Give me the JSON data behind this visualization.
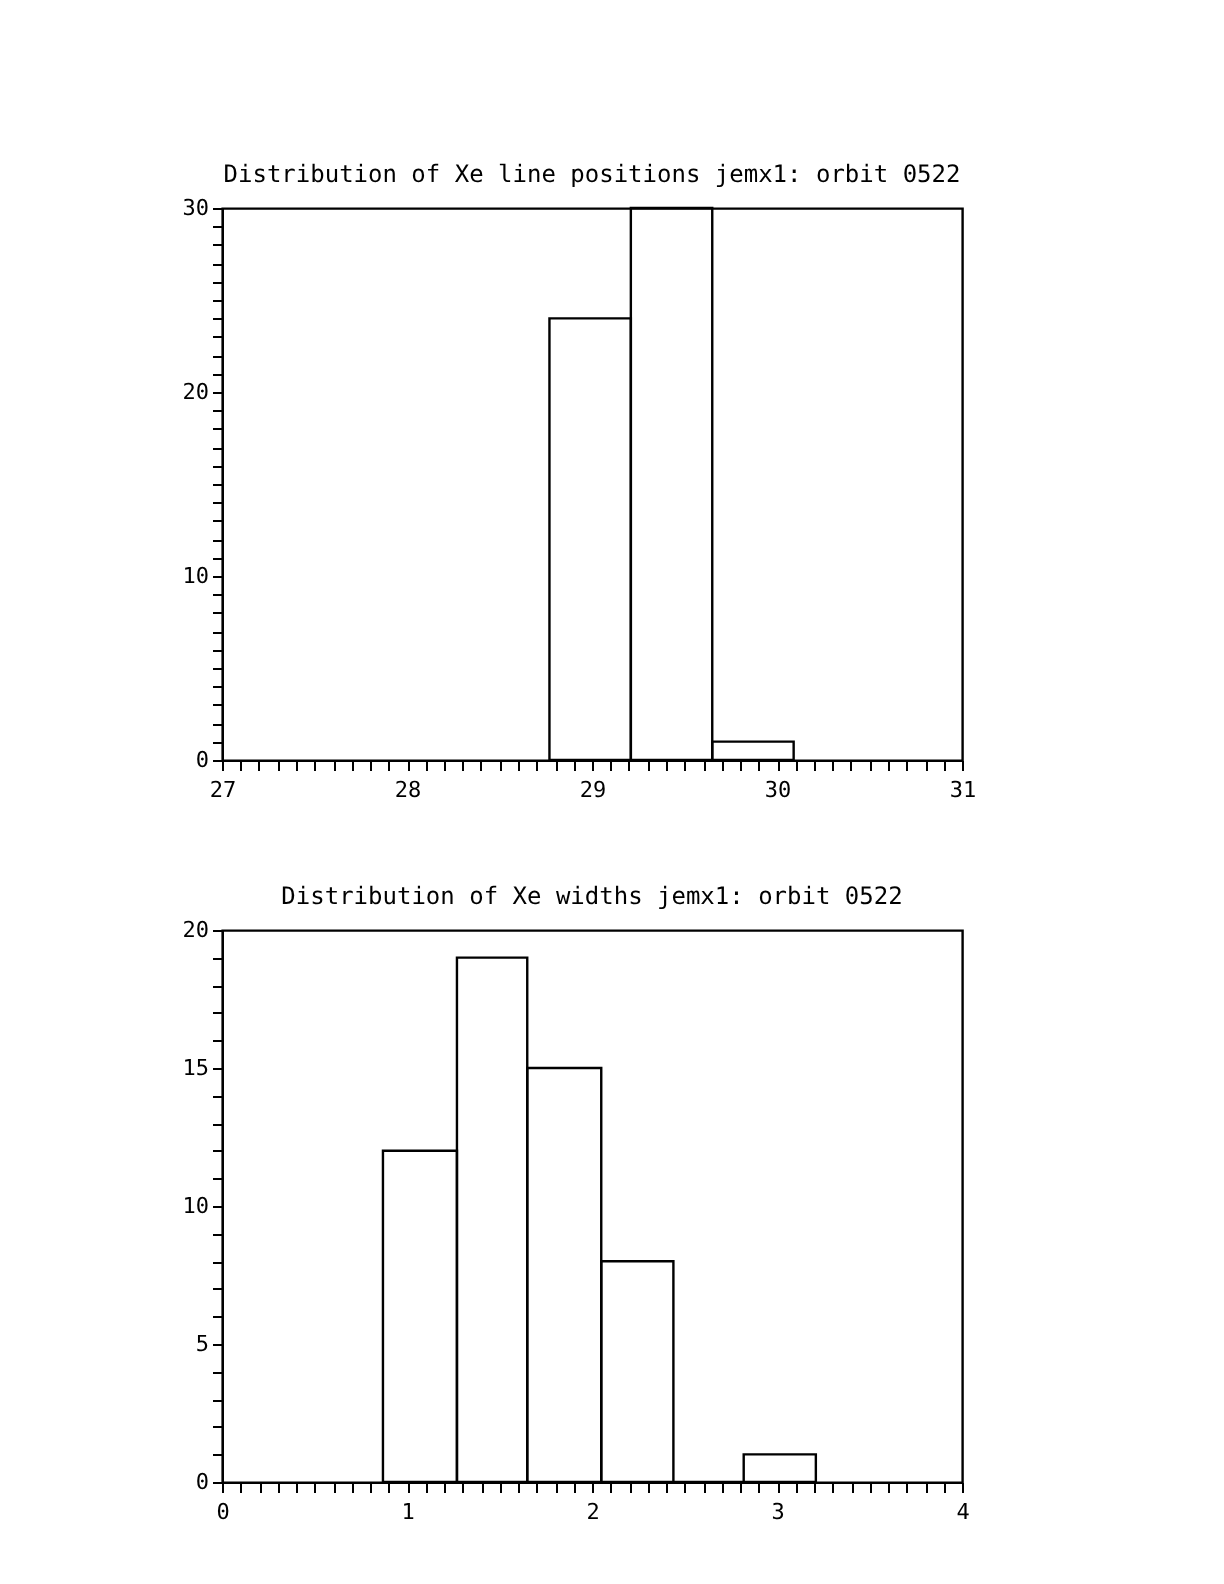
{
  "chart_data": [
    {
      "type": "histogram",
      "title": "Distribution of Xe line positions jemx1: orbit 0522",
      "bins": [
        28.77,
        29.21,
        29.65,
        30.09
      ],
      "values": [
        24,
        30,
        1
      ],
      "color": "#000000",
      "xlim": [
        27,
        31
      ],
      "ylim": [
        0,
        30
      ],
      "xticks": [
        27,
        {
          "value": 27.1,
          "label": null
        },
        {
          "value": 27.2,
          "label": null
        },
        {
          "value": 27.3,
          "label": null
        },
        {
          "value": 27.4,
          "label": null
        },
        {
          "value": 27.5,
          "label": null
        },
        {
          "value": 27.6,
          "label": null
        },
        {
          "value": 27.7,
          "label": null
        },
        {
          "value": 27.8,
          "label": null
        },
        {
          "value": 27.9,
          "label": null
        },
        28,
        {
          "value": 28.1,
          "label": null
        },
        {
          "value": 28.2,
          "label": null
        },
        {
          "value": 28.3,
          "label": null
        },
        {
          "value": 28.4,
          "label": null
        },
        {
          "value": 28.5,
          "label": null
        },
        {
          "value": 28.6,
          "label": null
        },
        {
          "value": 28.7,
          "label": null
        },
        {
          "value": 28.8,
          "label": null
        },
        {
          "value": 28.9,
          "label": null
        },
        29,
        {
          "value": 29.1,
          "label": null
        },
        {
          "value": 29.2,
          "label": null
        },
        {
          "value": 29.3,
          "label": null
        },
        {
          "value": 29.4,
          "label": null
        },
        {
          "value": 29.5,
          "label": null
        },
        {
          "value": 29.6,
          "label": null
        },
        {
          "value": 29.7,
          "label": null
        },
        {
          "value": 29.8,
          "label": null
        },
        {
          "value": 29.9,
          "label": null
        },
        30,
        {
          "value": 30.1,
          "label": null
        },
        {
          "value": 30.2,
          "label": null
        },
        {
          "value": 30.3,
          "label": null
        },
        {
          "value": 30.4,
          "label": null
        },
        {
          "value": 30.5,
          "label": null
        },
        {
          "value": 30.6,
          "label": null
        },
        {
          "value": 30.7,
          "label": null
        },
        {
          "value": 30.8,
          "label": null
        },
        {
          "value": 30.9,
          "label": null
        },
        31
      ],
      "yticks": [
        0,
        {
          "value": 1,
          "label": null
        },
        {
          "value": 2,
          "label": null
        },
        {
          "value": 3,
          "label": null
        },
        {
          "value": 4,
          "label": null
        },
        {
          "value": 5,
          "label": null
        },
        {
          "value": 6,
          "label": null
        },
        {
          "value": 7,
          "label": null
        },
        {
          "value": 8,
          "label": null
        },
        {
          "value": 9,
          "label": null
        },
        10,
        {
          "value": 11,
          "label": null
        },
        {
          "value": 12,
          "label": null
        },
        {
          "value": 13,
          "label": null
        },
        {
          "value": 14,
          "label": null
        },
        {
          "value": 15,
          "label": null
        },
        {
          "value": 16,
          "label": null
        },
        {
          "value": 17,
          "label": null
        },
        {
          "value": 18,
          "label": null
        },
        {
          "value": 19,
          "label": null
        },
        20,
        {
          "value": 21,
          "label": null
        },
        {
          "value": 22,
          "label": null
        },
        {
          "value": 23,
          "label": null
        },
        {
          "value": 24,
          "label": null
        },
        {
          "value": 25,
          "label": null
        },
        {
          "value": 26,
          "label": null
        },
        {
          "value": 27,
          "label": null
        },
        {
          "value": 28,
          "label": null
        },
        {
          "value": 29,
          "label": null
        },
        30
      ]
    },
    {
      "type": "histogram",
      "title": "Distribution of Xe widths jemx1: orbit 0522",
      "bins": [
        0.87,
        1.27,
        1.65,
        2.05,
        2.44,
        2.82,
        3.21
      ],
      "values": [
        12,
        19,
        15,
        8,
        0,
        1
      ],
      "color": "#000000",
      "xlim": [
        0,
        4
      ],
      "ylim": [
        0,
        20
      ],
      "xticks": [
        0,
        {
          "value": 0.1,
          "label": null
        },
        {
          "value": 0.2,
          "label": null
        },
        {
          "value": 0.3,
          "label": null
        },
        {
          "value": 0.4,
          "label": null
        },
        {
          "value": 0.5,
          "label": null
        },
        {
          "value": 0.6,
          "label": null
        },
        {
          "value": 0.7,
          "label": null
        },
        {
          "value": 0.8,
          "label": null
        },
        {
          "value": 0.9,
          "label": null
        },
        1,
        {
          "value": 1.1,
          "label": null
        },
        {
          "value": 1.2,
          "label": null
        },
        {
          "value": 1.3,
          "label": null
        },
        {
          "value": 1.4,
          "label": null
        },
        {
          "value": 1.5,
          "label": null
        },
        {
          "value": 1.6,
          "label": null
        },
        {
          "value": 1.7,
          "label": null
        },
        {
          "value": 1.8,
          "label": null
        },
        {
          "value": 1.9,
          "label": null
        },
        2,
        {
          "value": 2.1,
          "label": null
        },
        {
          "value": 2.2,
          "label": null
        },
        {
          "value": 2.3,
          "label": null
        },
        {
          "value": 2.4,
          "label": null
        },
        {
          "value": 2.5,
          "label": null
        },
        {
          "value": 2.6,
          "label": null
        },
        {
          "value": 2.7,
          "label": null
        },
        {
          "value": 2.8,
          "label": null
        },
        {
          "value": 2.9,
          "label": null
        },
        3,
        {
          "value": 3.1,
          "label": null
        },
        {
          "value": 3.2,
          "label": null
        },
        {
          "value": 3.3,
          "label": null
        },
        {
          "value": 3.4,
          "label": null
        },
        {
          "value": 3.5,
          "label": null
        },
        {
          "value": 3.6,
          "label": null
        },
        {
          "value": 3.7,
          "label": null
        },
        {
          "value": 3.8,
          "label": null
        },
        {
          "value": 3.9,
          "label": null
        },
        4
      ],
      "yticks": [
        0,
        {
          "value": 1,
          "label": null
        },
        {
          "value": 2,
          "label": null
        },
        {
          "value": 3,
          "label": null
        },
        {
          "value": 4,
          "label": null
        },
        5,
        {
          "value": 6,
          "label": null
        },
        {
          "value": 7,
          "label": null
        },
        {
          "value": 8,
          "label": null
        },
        {
          "value": 9,
          "label": null
        },
        10,
        {
          "value": 11,
          "label": null
        },
        {
          "value": 12,
          "label": null
        },
        {
          "value": 13,
          "label": null
        },
        {
          "value": 14,
          "label": null
        },
        15,
        {
          "value": 16,
          "label": null
        },
        {
          "value": 17,
          "label": null
        },
        {
          "value": 18,
          "label": null
        },
        {
          "value": 19,
          "label": null
        },
        20
      ]
    }
  ]
}
